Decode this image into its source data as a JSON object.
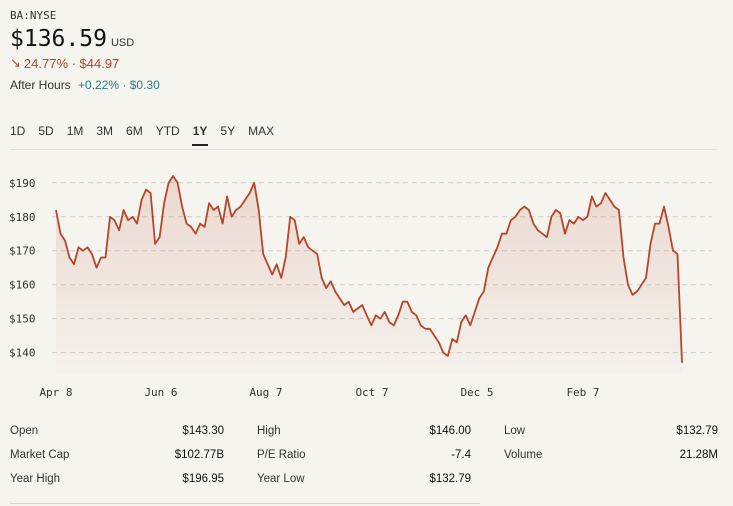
{
  "header": {
    "ticker": "BA:NYSE",
    "price": "$136.59",
    "currency": "USD",
    "change_arrow": "↘",
    "change": "24.77% · $44.97",
    "after_hours_label": "After Hours",
    "after_hours_change": "+0.22% · $0.30"
  },
  "colors": {
    "line": "#b5462a",
    "down": "#b5462a",
    "up": "#2c7c86"
  },
  "tabs": [
    {
      "label": "1D",
      "active": false
    },
    {
      "label": "5D",
      "active": false
    },
    {
      "label": "1M",
      "active": false
    },
    {
      "label": "3M",
      "active": false
    },
    {
      "label": "6M",
      "active": false
    },
    {
      "label": "YTD",
      "active": false
    },
    {
      "label": "1Y",
      "active": true
    },
    {
      "label": "5Y",
      "active": false
    },
    {
      "label": "MAX",
      "active": false
    }
  ],
  "chart_data": {
    "type": "area",
    "title": "",
    "xlabel": "",
    "ylabel": "",
    "x_tick_labels": [
      "Apr 8",
      "Jun 6",
      "Aug 7",
      "Oct 7",
      "Dec 5",
      "Feb 7"
    ],
    "y_ticks": [
      190,
      180,
      170,
      160,
      150,
      140
    ],
    "y_tick_labels": [
      "$190",
      "$180",
      "$170",
      "$160",
      "$150",
      "$140"
    ],
    "ylim": [
      134,
      192
    ],
    "grid": "horizontal-dashed",
    "series": [
      {
        "values": [
          182,
          175,
          173,
          168,
          166,
          171,
          170,
          171,
          169,
          165,
          168,
          168,
          180,
          179,
          176,
          182,
          179,
          180,
          178,
          185,
          188,
          187,
          172,
          174,
          184,
          190,
          192,
          190,
          183,
          178,
          177,
          175,
          178,
          177,
          184,
          182,
          183,
          178,
          186,
          180,
          182,
          183,
          185,
          187,
          190,
          182,
          169,
          166,
          163,
          166,
          162,
          168,
          180,
          179,
          172,
          174,
          171,
          170,
          169,
          162,
          159,
          161,
          158,
          156,
          154,
          155,
          152,
          153,
          154,
          151,
          148,
          151,
          150,
          152,
          149,
          148,
          151,
          155,
          155,
          152,
          151,
          148,
          147,
          147,
          145,
          143,
          140,
          139,
          144,
          143,
          149,
          151,
          148,
          152,
          156,
          158,
          165,
          168,
          171,
          175,
          175,
          179,
          180,
          182,
          183,
          182,
          178,
          176,
          175,
          174,
          180,
          182,
          181,
          175,
          179,
          178,
          180,
          179,
          180,
          186,
          183,
          184,
          187,
          185,
          183,
          182,
          168,
          160,
          157,
          158,
          160,
          162,
          172,
          178,
          178,
          183,
          177,
          170,
          169,
          137
        ]
      }
    ]
  },
  "stats": [
    {
      "label": "Open",
      "value": "$143.30"
    },
    {
      "label": "High",
      "value": "$146.00"
    },
    {
      "label": "Low",
      "value": "$132.79"
    },
    {
      "label": "Market Cap",
      "value": "$102.77B"
    },
    {
      "label": "P/E Ratio",
      "value": "-7.4"
    },
    {
      "label": "Volume",
      "value": "21.28M"
    },
    {
      "label": "Year High",
      "value": "$196.95"
    },
    {
      "label": "Year Low",
      "value": "$132.79"
    }
  ]
}
